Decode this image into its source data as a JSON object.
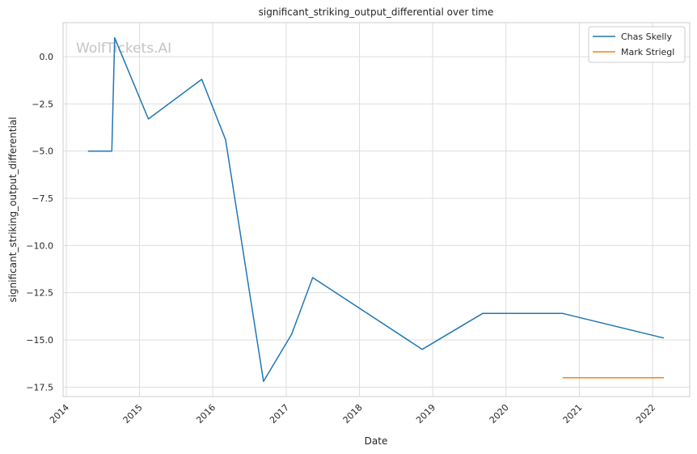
{
  "chart_data": {
    "type": "line",
    "title": "significant_striking_output_differential over time",
    "xlabel": "Date",
    "ylabel": "significant_striking_output_differential",
    "watermark": "WolfTickets.AI",
    "xlim": [
      "2013-12-16",
      "2022-07-05"
    ],
    "ylim": [
      -18.0,
      1.8
    ],
    "x_ticks": [
      "2014",
      "2015",
      "2016",
      "2017",
      "2018",
      "2019",
      "2020",
      "2021",
      "2022"
    ],
    "y_ticks": [
      "0.0",
      "−2.5",
      "−5.0",
      "−7.5",
      "−10.0",
      "−12.5",
      "−15.0",
      "−17.5"
    ],
    "grid": true,
    "legend_position": "top-right",
    "series": [
      {
        "name": "Chas Skelly",
        "color": "#1f77b4",
        "points": [
          [
            "2014-04-19",
            -5.0
          ],
          [
            "2014-08-16",
            -5.0
          ],
          [
            "2014-08-30",
            1.0
          ],
          [
            "2015-02-14",
            -3.3
          ],
          [
            "2015-11-07",
            -1.2
          ],
          [
            "2016-03-05",
            -4.4
          ],
          [
            "2016-09-10",
            -17.2
          ],
          [
            "2017-01-28",
            -14.7
          ],
          [
            "2017-05-13",
            -11.7
          ],
          [
            "2018-11-10",
            -15.5
          ],
          [
            "2019-09-07",
            -13.6
          ],
          [
            "2020-10-10",
            -13.6
          ],
          [
            "2022-02-26",
            -14.9
          ]
        ]
      },
      {
        "name": "Mark Striegl",
        "color": "#ff7f0e",
        "points": [
          [
            "2020-10-10",
            -17.0
          ],
          [
            "2022-02-26",
            -17.0
          ]
        ]
      }
    ]
  }
}
